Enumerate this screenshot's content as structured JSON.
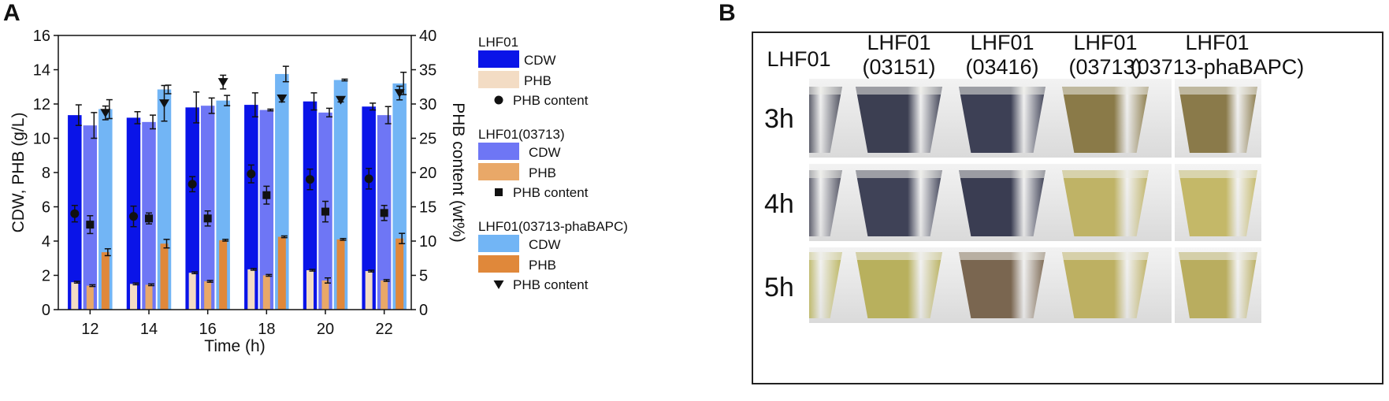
{
  "panel_a": {
    "letter": "A"
  },
  "panel_b": {
    "letter": "B",
    "columns": [
      "LHF01",
      "LHF01\n(03151)",
      "LHF01\n(03416)",
      "LHF01\n(03713)",
      "LHF01\n(03713-phaBAPC)"
    ],
    "rows": [
      "3h",
      "4h",
      "5h"
    ],
    "colors": {
      "3h": [
        "#4a4c5a",
        "#3c3f52",
        "#3d4055",
        "#8a7a48",
        "#8a7a4a"
      ],
      "4h": [
        "#4f5060",
        "#3f4257",
        "#3a3d52",
        "#bfb366",
        "#c4b868"
      ],
      "5h": [
        "#bbb560",
        "#b8b05d",
        "#7a6650",
        "#bdb062",
        "#b9ad5f"
      ]
    }
  },
  "chart_data": {
    "type": "bar",
    "categories": [
      "12",
      "14",
      "16",
      "18",
      "20",
      "22"
    ],
    "xlabel": "Time (h)",
    "ylabel_left": "CDW, PHB (g/L)",
    "ylabel_right": "PHB content (wt%)",
    "ylim_left": [
      0,
      16
    ],
    "ylim_right": [
      0,
      40
    ],
    "yticks_left": [
      "0",
      "2",
      "4",
      "6",
      "8",
      "10",
      "12",
      "14",
      "16"
    ],
    "yticks_right": [
      "0",
      "5",
      "10",
      "15",
      "20",
      "25",
      "30",
      "35",
      "40"
    ],
    "grid": false,
    "legend_position": "right-outside",
    "strains": [
      {
        "name": "LHF01",
        "cdw_label": "CDW",
        "phb_label": "PHB",
        "content_label": "PHB content",
        "marker": "circle",
        "cdw_color": "#0a14e8",
        "phb_color": "#f3dcc4",
        "cdw": [
          11.35,
          11.2,
          11.8,
          11.95,
          12.15,
          11.85
        ],
        "cdw_err": [
          0.6,
          0.35,
          0.9,
          0.7,
          0.5,
          0.2
        ],
        "phb": [
          1.6,
          1.5,
          2.15,
          2.35,
          2.3,
          2.25
        ],
        "phb_err": [
          0.05,
          0.05,
          0.05,
          0.05,
          0.05,
          0.05
        ],
        "content": [
          14.0,
          13.6,
          18.3,
          19.8,
          19.0,
          19.1
        ],
        "content_err": [
          1.2,
          1.5,
          1.1,
          1.3,
          1.5,
          1.5
        ]
      },
      {
        "name": "LHF01(03713)",
        "cdw_label": "CDW",
        "phb_label": "PHB",
        "content_label": "PHB content",
        "marker": "square",
        "cdw_color": "#6e76f5",
        "phb_color": "#e9a868",
        "cdw": [
          10.75,
          10.95,
          11.9,
          11.65,
          11.5,
          11.35
        ],
        "cdw_err": [
          0.75,
          0.4,
          0.45,
          0.05,
          0.25,
          0.5
        ],
        "phb": [
          1.4,
          1.45,
          1.65,
          2.0,
          1.7,
          1.7
        ],
        "phb_err": [
          0.05,
          0.05,
          0.05,
          0.05,
          0.15,
          0.05
        ],
        "content": [
          12.4,
          13.3,
          13.3,
          16.7,
          14.3,
          14.1
        ],
        "content_err": [
          1.3,
          0.8,
          1.1,
          1.3,
          1.5,
          1.1
        ]
      },
      {
        "name": "LHF01(03713-phaBAPC)",
        "cdw_label": "CDW",
        "phb_label": "PHB",
        "content_label": "PHB content",
        "marker": "triangle-down",
        "cdw_color": "#72b5f5",
        "phb_color": "#e0883a",
        "cdw": [
          11.7,
          12.85,
          12.2,
          13.75,
          13.4,
          13.2
        ],
        "cdw_err": [
          0.55,
          0.25,
          0.3,
          0.45,
          0.05,
          0.65
        ],
        "phb": [
          3.35,
          3.85,
          4.05,
          4.25,
          4.1,
          4.15
        ],
        "phb_err": [
          0.2,
          0.25,
          0.05,
          0.05,
          0.05,
          0.3
        ],
        "content": [
          28.7,
          30.1,
          33.2,
          30.8,
          30.6,
          31.6
        ],
        "content_err": [
          1.0,
          2.6,
          1.0,
          0.5,
          0.3,
          1.0
        ]
      }
    ]
  }
}
